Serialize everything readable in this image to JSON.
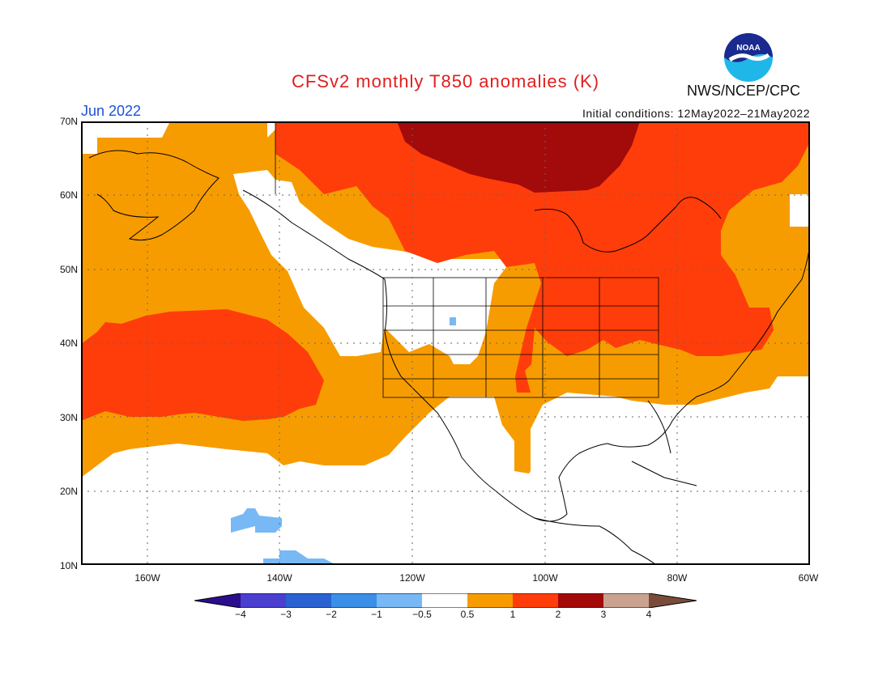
{
  "header": {
    "title": "CFSv2 monthly T850 anomalies (K)",
    "agency": "NWS/NCEP/CPC",
    "month": "Jun 2022",
    "initial_conditions": "Initial conditions: 12May2022–21May2022"
  },
  "logo": {
    "text": "NOAA",
    "icon": "noaa-logo-icon"
  },
  "map": {
    "lat_labels": [
      "70N",
      "60N",
      "50N",
      "40N",
      "30N",
      "20N",
      "10N"
    ],
    "lon_labels": [
      "160W",
      "140W",
      "120W",
      "100W",
      "80W",
      "60W"
    ]
  },
  "colorbar": {
    "labels": [
      "−4",
      "−3",
      "−2",
      "−1",
      "−0.5",
      "0.5",
      "1",
      "2",
      "3",
      "4"
    ],
    "colors": [
      "#2a0e8c",
      "#4a3fcf",
      "#2a62d1",
      "#3c8fe6",
      "#78b8f5",
      "#ffffff",
      "#f79c00",
      "#ff3d0a",
      "#a30a0a",
      "#c9a390",
      "#7b4b3a"
    ]
  },
  "colors": {
    "orange": "#f79c00",
    "red": "#ff3d0a",
    "darkred": "#a30a0a",
    "lightblue": "#78b8f5",
    "title_red": "#e01e1e",
    "month_blue": "#1e4fd8"
  }
}
